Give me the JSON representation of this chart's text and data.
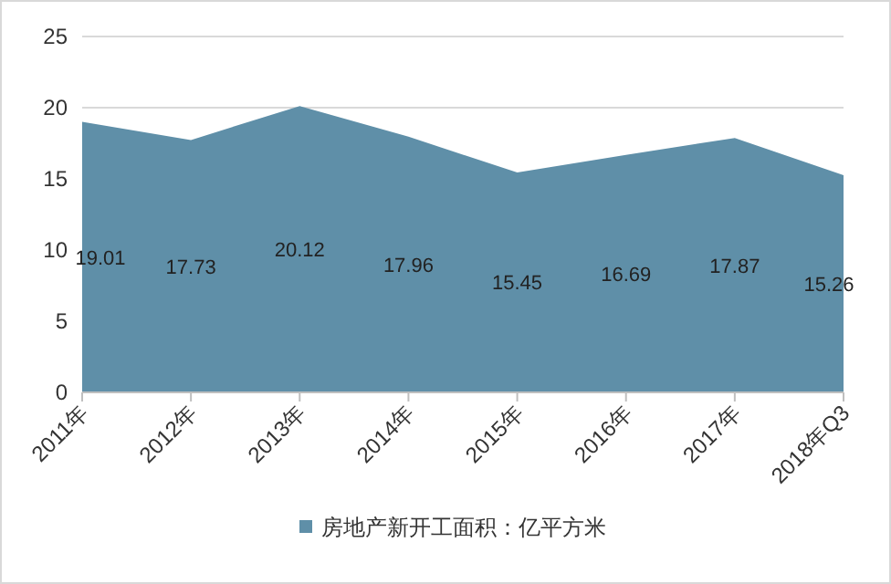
{
  "chart_data": {
    "type": "area",
    "categories": [
      "2011年",
      "2012年",
      "2013年",
      "2014年",
      "2015年",
      "2016年",
      "2017年",
      "2018年Q3"
    ],
    "series": [
      {
        "name": "房地产新开工面积：亿平方米",
        "color": "#5f8fa8",
        "values": [
          19.01,
          17.73,
          20.12,
          17.96,
          15.45,
          16.69,
          17.87,
          15.26
        ]
      }
    ],
    "value_labels": [
      "19.01",
      "17.73",
      "20.12",
      "17.96",
      "15.45",
      "16.69",
      "17.87",
      "15.26"
    ],
    "ylim": [
      0,
      25
    ],
    "yticks": [
      0,
      5,
      10,
      15,
      20,
      25
    ],
    "grid": "y",
    "legend": "bottom"
  }
}
